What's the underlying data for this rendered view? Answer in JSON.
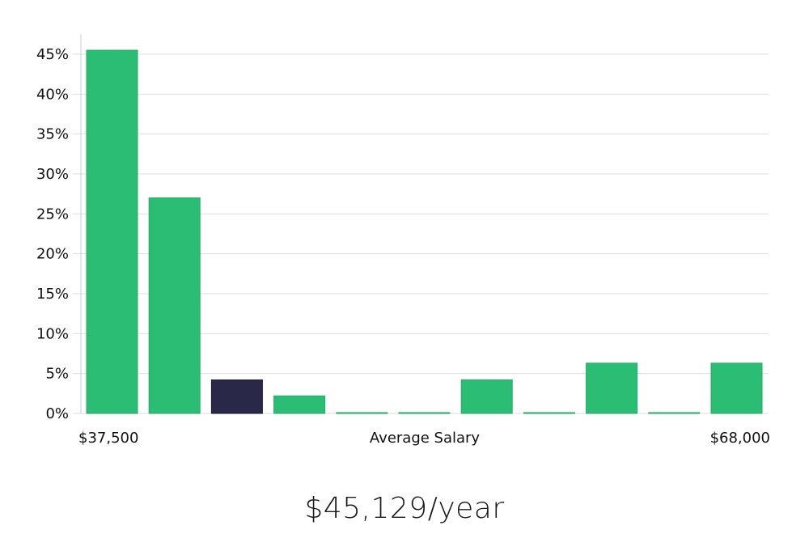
{
  "chart_data": {
    "type": "bar",
    "xlabel": "Average Salary",
    "x_range_labels": [
      "$37,500",
      "$68,000"
    ],
    "ylim": [
      0,
      47.5
    ],
    "y_ticks": [
      0,
      5,
      10,
      15,
      20,
      25,
      30,
      35,
      40,
      45
    ],
    "y_tick_format": "%",
    "grid": true,
    "values": [
      45.5,
      27.0,
      4.2,
      2.2,
      0.1,
      0.1,
      4.2,
      0.1,
      6.3,
      0.1,
      6.3
    ],
    "highlight_index": 2,
    "colors": {
      "bar": "#2bbd74",
      "bar_border": "#1fae65",
      "highlight": "#2a2849",
      "grid": "#dddddd",
      "axis": "#cccccc"
    }
  },
  "summary": {
    "salary_text": "$45,129/year"
  }
}
